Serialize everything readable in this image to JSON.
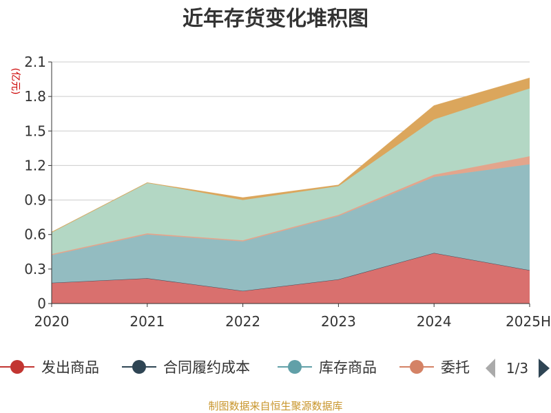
{
  "chart_data": {
    "type": "area",
    "title": "近年存货变化堆积图",
    "unit_label": "(亿元)",
    "categories": [
      "2020",
      "2021",
      "2022",
      "2023",
      "2024",
      "2025H"
    ],
    "ylim": [
      0,
      2.1
    ],
    "yticks": [
      "0",
      "0.3",
      "0.6",
      "0.9",
      "1.2",
      "1.5",
      "1.8",
      "2.1"
    ],
    "grid": true,
    "stacked": true,
    "series": [
      {
        "name": "发出商品",
        "color": "#d9706e",
        "values": [
          0.18,
          0.22,
          0.11,
          0.21,
          0.44,
          0.29
        ]
      },
      {
        "name": "合同履约成本",
        "color": "#2f4554",
        "values": [
          0.0,
          0.0,
          0.0,
          0.0,
          0.0,
          0.0
        ]
      },
      {
        "name": "库存商品",
        "color": "#93bcc1",
        "values": [
          0.24,
          0.38,
          0.43,
          0.55,
          0.66,
          0.92
        ]
      },
      {
        "name": "委托",
        "color": "#e3a58c",
        "values": [
          0.01,
          0.01,
          0.01,
          0.01,
          0.02,
          0.07
        ]
      },
      {
        "name": "",
        "color": "#b3d7c4",
        "values": [
          0.19,
          0.44,
          0.35,
          0.25,
          0.48,
          0.59
        ]
      },
      {
        "name": "",
        "color": "#dba65c",
        "values": [
          0.0,
          0.0,
          0.02,
          0.01,
          0.12,
          0.09
        ]
      }
    ],
    "legend": {
      "position": "bottom",
      "items": [
        {
          "name": "发出商品",
          "color": "#c23531"
        },
        {
          "name": "合同履约成本",
          "color": "#2f4554"
        },
        {
          "name": "库存商品",
          "color": "#61a0a8"
        },
        {
          "name": "委托",
          "color": "#d48265"
        }
      ],
      "page": "1/3"
    },
    "source": "制图数据来自恒生聚源数据库"
  }
}
